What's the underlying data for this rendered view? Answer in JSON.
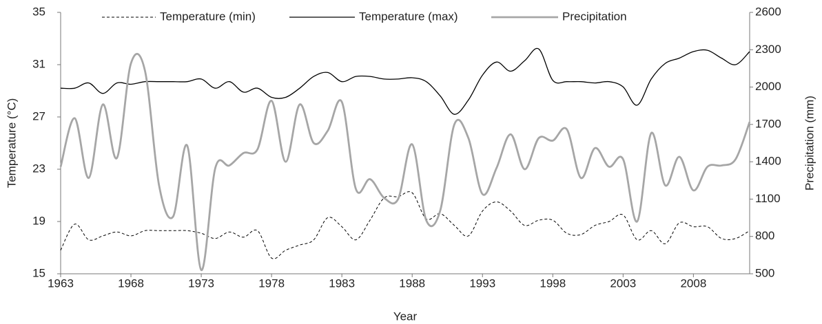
{
  "chart_data": {
    "type": "line",
    "x_label": "Year",
    "y_label": "Temperature (°C)",
    "y2_label": "Precipitation (mm)",
    "x": [
      1963,
      1964,
      1965,
      1966,
      1967,
      1968,
      1969,
      1970,
      1971,
      1972,
      1973,
      1974,
      1975,
      1976,
      1977,
      1978,
      1979,
      1980,
      1981,
      1982,
      1983,
      1984,
      1985,
      1986,
      1987,
      1988,
      1989,
      1990,
      1991,
      1992,
      1993,
      1994,
      1995,
      1996,
      1997,
      1998,
      1999,
      2000,
      2001,
      2002,
      2003,
      2004,
      2005,
      2006,
      2007,
      2008,
      2009,
      2010,
      2011,
      2012
    ],
    "xlim": [
      1963,
      2012
    ],
    "xticks": [
      1963,
      1968,
      1973,
      1978,
      1983,
      1988,
      1993,
      1998,
      2003,
      2008
    ],
    "ylim": [
      15,
      35
    ],
    "yticks": [
      15,
      19,
      23,
      27,
      31,
      35
    ],
    "y2lim": [
      500,
      2600
    ],
    "y2ticks": [
      500,
      800,
      1100,
      1400,
      1700,
      2000,
      2300,
      2600
    ],
    "smooth": true,
    "series": [
      {
        "name": "Temperature (min)",
        "color": "#000000",
        "dashed": true,
        "width": 1,
        "values": [
          16.8,
          18.8,
          17.6,
          17.9,
          18.2,
          17.9,
          18.3,
          18.3,
          18.3,
          18.3,
          18.1,
          17.7,
          18.2,
          17.8,
          18.3,
          16.2,
          16.8,
          17.2,
          17.6,
          19.3,
          18.6,
          17.6,
          19.1,
          20.8,
          20.9,
          21.2,
          19.2,
          19.6,
          18.7,
          17.9,
          19.8,
          20.5,
          19.8,
          18.7,
          19.1,
          19.1,
          18.1,
          18.0,
          18.7,
          19.0,
          19.5,
          17.6,
          18.3,
          17.3,
          18.9,
          18.6,
          18.6,
          17.7,
          17.7,
          18.3
        ]
      },
      {
        "name": "Temperature (max)",
        "color": "#000000",
        "dashed": false,
        "width": 1.3,
        "values": [
          29.2,
          29.2,
          29.6,
          28.8,
          29.6,
          29.5,
          29.7,
          29.7,
          29.7,
          29.7,
          29.9,
          29.2,
          29.7,
          28.9,
          29.2,
          28.5,
          28.5,
          29.2,
          30.1,
          30.4,
          29.7,
          30.1,
          30.1,
          29.9,
          29.9,
          30.0,
          29.7,
          28.6,
          27.2,
          28.3,
          30.2,
          31.2,
          30.5,
          31.3,
          32.2,
          29.8,
          29.7,
          29.7,
          29.6,
          29.7,
          29.3,
          27.9,
          29.9,
          31.1,
          31.5,
          32.0,
          32.1,
          31.5,
          31.0,
          32.0
        ]
      },
      {
        "name": "Precipitation",
        "color": "#a6a6a6",
        "dashed": false,
        "width": 2.8,
        "axis": "y2",
        "values": [
          1360,
          1750,
          1270,
          1860,
          1430,
          2190,
          2130,
          1210,
          960,
          1530,
          530,
          1350,
          1370,
          1470,
          1500,
          1890,
          1400,
          1860,
          1550,
          1650,
          1880,
          1180,
          1260,
          1110,
          1100,
          1540,
          930,
          1010,
          1700,
          1590,
          1140,
          1350,
          1620,
          1340,
          1590,
          1570,
          1660,
          1270,
          1510,
          1360,
          1420,
          920,
          1630,
          1210,
          1440,
          1170,
          1360,
          1370,
          1420,
          1720
        ]
      }
    ]
  }
}
